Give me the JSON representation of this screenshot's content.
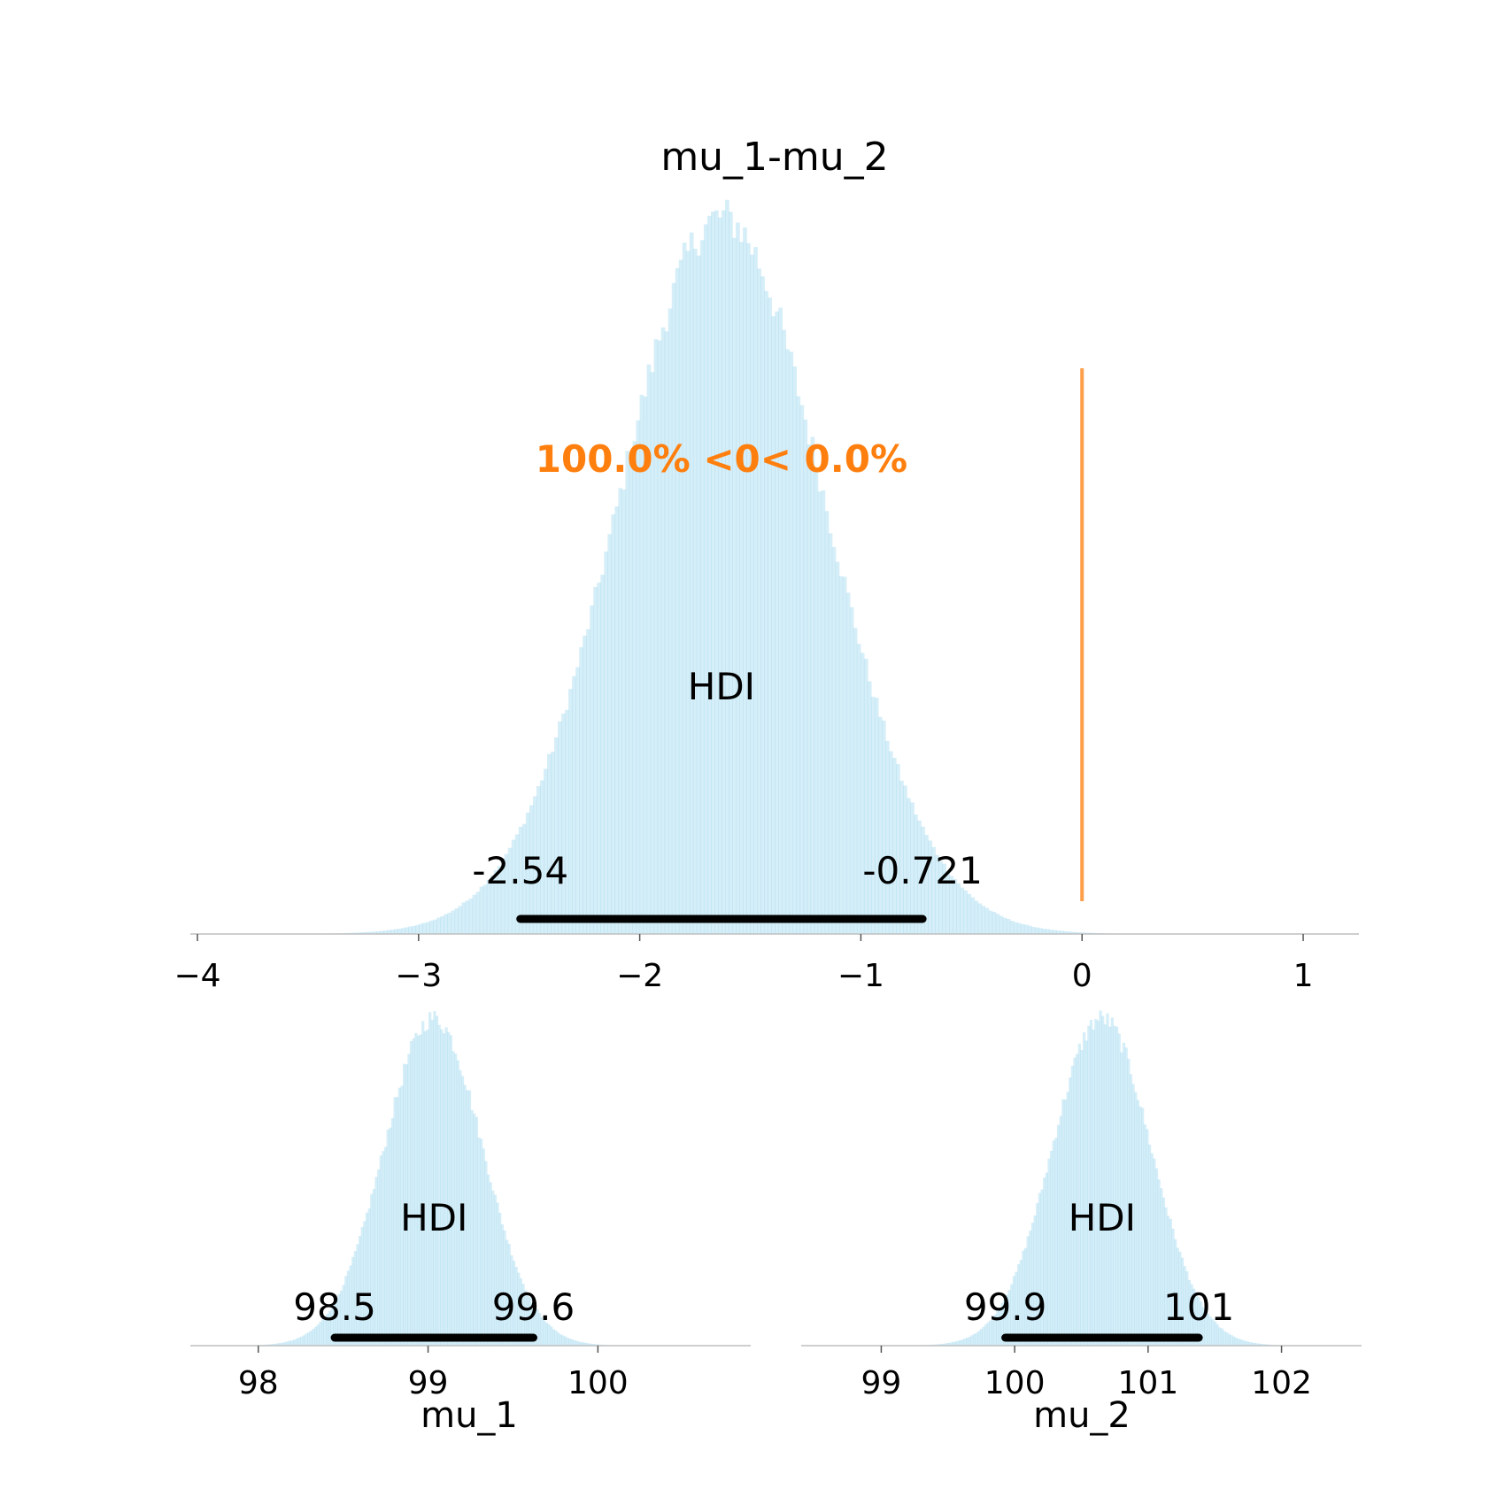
{
  "chart_data": [
    {
      "type": "histogram",
      "title": "mu_1-mu_2",
      "xlabel": "",
      "xlim": [
        -4.0,
        1.2
      ],
      "x_ticks": [
        -4,
        -3,
        -2,
        -1,
        0,
        1
      ],
      "x_tick_labels": [
        "−4",
        "−3",
        "−2",
        "−1",
        "0",
        "1"
      ],
      "distribution": {
        "mean": -1.63,
        "sd": 0.465
      },
      "hdi_label": "HDI",
      "hdi": [
        -2.54,
        -0.721
      ],
      "hdi_labels": [
        "-2.54",
        "-0.721"
      ],
      "reference": {
        "value": 0,
        "text": "100.0% <0< 0.0%",
        "color": "#ff7f0e"
      },
      "fill_color": "#87ceeb",
      "fill_opacity": 0.35
    },
    {
      "type": "histogram",
      "title": "",
      "xlabel": "mu_1",
      "xlim": [
        97.6,
        100.9
      ],
      "x_ticks": [
        98,
        99,
        100
      ],
      "x_tick_labels": [
        "98",
        "99",
        "100"
      ],
      "distribution": {
        "mean": 99.03,
        "sd": 0.29
      },
      "hdi_label": "HDI",
      "hdi": [
        98.45,
        99.62
      ],
      "hdi_labels": [
        "98.5",
        "99.6"
      ],
      "fill_color": "#87ceeb",
      "fill_opacity": 0.35
    },
    {
      "type": "histogram",
      "title": "",
      "xlabel": "mu_2",
      "xlim": [
        98.4,
        102.6
      ],
      "x_ticks": [
        99,
        100,
        101,
        102
      ],
      "x_tick_labels": [
        "99",
        "100",
        "101",
        "102"
      ],
      "distribution": {
        "mean": 100.65,
        "sd": 0.37
      },
      "hdi_label": "HDI",
      "hdi": [
        99.93,
        101.38
      ],
      "hdi_labels": [
        "99.9",
        "101"
      ],
      "fill_color": "#87ceeb",
      "fill_opacity": 0.35
    }
  ]
}
